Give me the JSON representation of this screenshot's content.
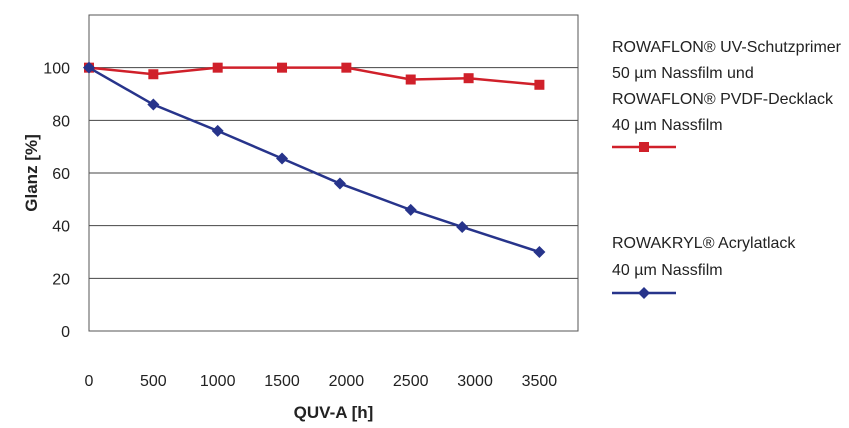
{
  "chart_data": {
    "type": "line",
    "xlabel": "QUV-A [h]",
    "ylabel": "Glanz [%]",
    "xlim": [
      0,
      3800
    ],
    "ylim": [
      0,
      120
    ],
    "x_ticks": [
      0,
      500,
      1000,
      1500,
      2000,
      2500,
      3000,
      3500
    ],
    "y_ticks": [
      0,
      20,
      40,
      60,
      80,
      100
    ],
    "grid": "horizontal",
    "legend_position": "right",
    "series": [
      {
        "legend_lines": [
          "ROWAFLON® UV-Schutzprimer",
          "50 µm Nassfilm und",
          "ROWAFLON® PVDF-Decklack",
          "40 µm Nassfilm"
        ],
        "color": "#d0202a",
        "marker": "square",
        "x": [
          0,
          500,
          1000,
          1500,
          2000,
          2500,
          2950,
          3500
        ],
        "values": [
          100,
          97.5,
          100,
          100,
          100,
          95.5,
          96,
          93.5
        ]
      },
      {
        "legend_lines": [
          "ROWAKRYL® Acrylatlack",
          "40 µm Nassfilm"
        ],
        "color": "#27348b",
        "marker": "diamond",
        "x": [
          0,
          500,
          1000,
          1500,
          1950,
          2500,
          2900,
          3500
        ],
        "values": [
          100,
          86,
          76,
          65.5,
          56,
          46,
          39.5,
          30
        ]
      }
    ]
  }
}
